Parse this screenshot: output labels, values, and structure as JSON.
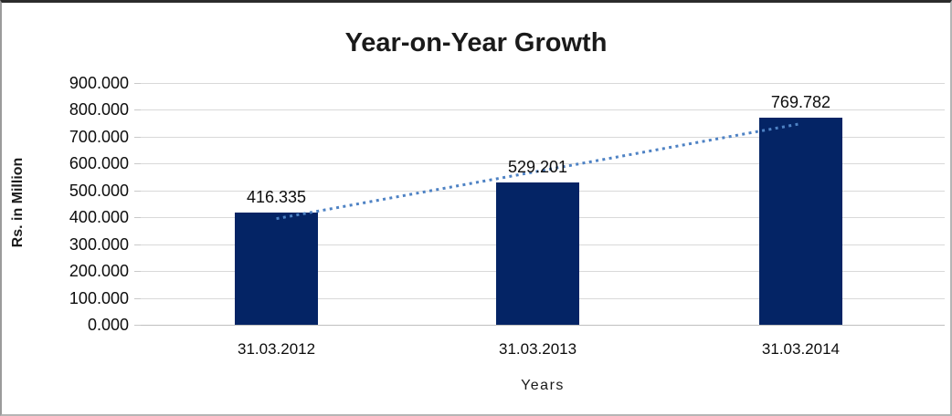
{
  "chart_data": {
    "type": "bar",
    "title": "Year-on-Year Growth",
    "xlabel": "Years",
    "ylabel": "Rs. in Million",
    "categories": [
      "31.03.2012",
      "31.03.2013",
      "31.03.2014"
    ],
    "values": [
      416.335,
      529.201,
      769.782
    ],
    "data_labels": [
      "416.335",
      "529.201",
      "769.782"
    ],
    "ytick_labels": [
      "0.000",
      "100.000",
      "200.000",
      "300.000",
      "400.000",
      "500.000",
      "600.000",
      "700.000",
      "800.000",
      "900.000"
    ],
    "ylim": [
      0,
      900
    ],
    "ytick_step": 100,
    "grid": true,
    "legend": "none",
    "trendline": {
      "type": "linear",
      "style": "dotted"
    },
    "colors": {
      "bar": "#042465",
      "trendline": "#4e82c4",
      "gridline": "#d9d9d9",
      "axis_line": "#bfbfbf",
      "title_text": "#1a1a1a",
      "label_text": "#0d0d0d"
    }
  }
}
